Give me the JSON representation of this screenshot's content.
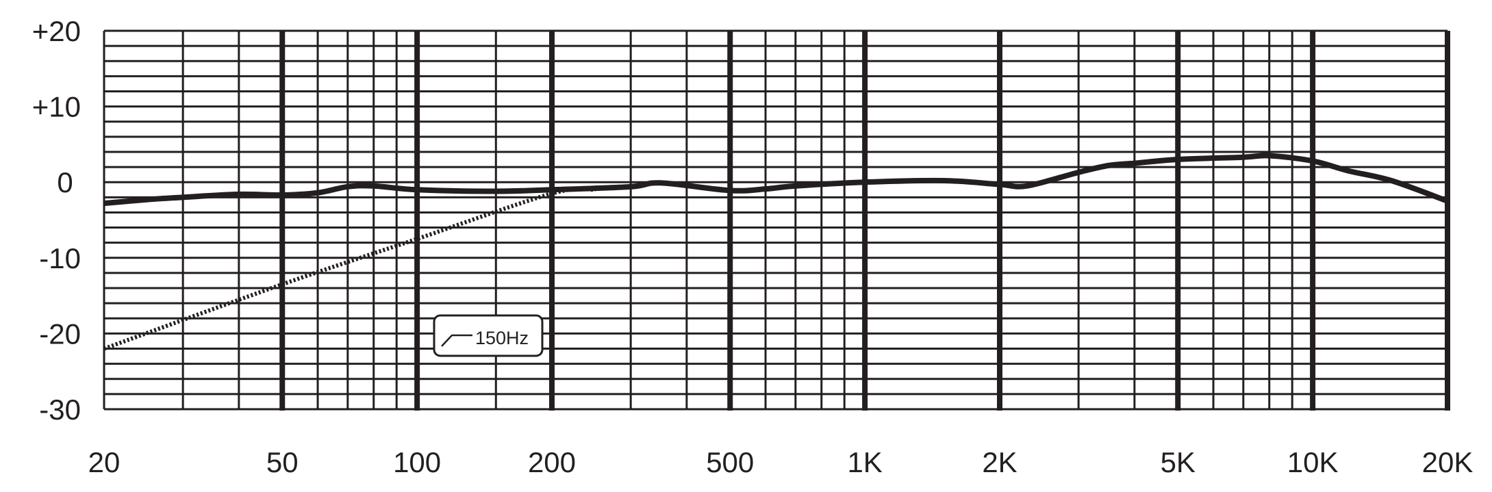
{
  "chart_data": {
    "type": "line",
    "title": "",
    "xlabel": "",
    "ylabel": "",
    "x_scale": "log",
    "xlim": [
      20,
      20000
    ],
    "ylim": [
      -30,
      20
    ],
    "grid": true,
    "x_tick_labels": [
      {
        "value": 20,
        "label": "20"
      },
      {
        "value": 50,
        "label": "50"
      },
      {
        "value": 100,
        "label": "100"
      },
      {
        "value": 200,
        "label": "200"
      },
      {
        "value": 500,
        "label": "500"
      },
      {
        "value": 1000,
        "label": "1K"
      },
      {
        "value": 2000,
        "label": "2K"
      },
      {
        "value": 5000,
        "label": "5K"
      },
      {
        "value": 10000,
        "label": "10K"
      },
      {
        "value": 20000,
        "label": "20K"
      }
    ],
    "y_tick_labels": [
      {
        "value": 20,
        "label": "+20"
      },
      {
        "value": 10,
        "label": "+10"
      },
      {
        "value": 0,
        "label": "0"
      },
      {
        "value": -10,
        "label": "-10"
      },
      {
        "value": -20,
        "label": "-20"
      },
      {
        "value": -30,
        "label": "-30"
      }
    ],
    "series": [
      {
        "style": "solid",
        "color": "#231f20",
        "x": [
          20,
          25,
          30,
          40,
          50,
          60,
          70,
          80,
          100,
          150,
          200,
          300,
          350,
          500,
          600,
          700,
          1000,
          1500,
          2000,
          2300,
          3000,
          3500,
          4000,
          5000,
          7000,
          8000,
          10000,
          12000,
          15000,
          20000
        ],
        "y": [
          -2.8,
          -2.3,
          -2,
          -1.6,
          -1.7,
          -1.4,
          -0.6,
          -0.5,
          -1,
          -1.2,
          -1,
          -0.6,
          -0.1,
          -1.1,
          -0.9,
          -0.5,
          0,
          0.2,
          -0.3,
          -0.5,
          1.3,
          2.2,
          2.5,
          3,
          3.3,
          3.5,
          2.8,
          1.5,
          0.2,
          -2.5
        ]
      },
      {
        "style": "dotted",
        "color": "#231f20",
        "x": [
          20,
          50,
          100,
          200,
          250
        ],
        "y": [
          -22,
          -13.5,
          -7.5,
          -1.5,
          -1
        ]
      }
    ],
    "annotation": {
      "label": "150Hz",
      "icon": "high-pass-filter-icon"
    }
  }
}
